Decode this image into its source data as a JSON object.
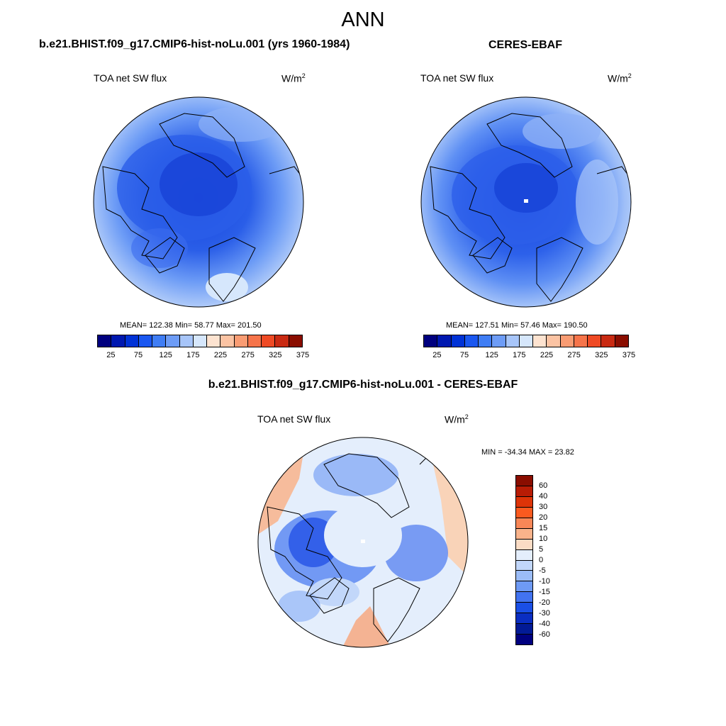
{
  "title": "ANN",
  "panels": [
    {
      "title": "b.e21.BHIST.f09_g17.CMIP6-hist-noLu.001 (yrs 1960-1984)",
      "variable": "TOA net SW flux",
      "units": "W/m",
      "units_sup": "2",
      "stats": "MEAN= 122.38  Min=  58.77  Max= 201.50"
    },
    {
      "title": "CERES-EBAF",
      "variable": "TOA net SW flux",
      "units": "W/m",
      "units_sup": "2",
      "stats": "MEAN= 127.51  Min=  57.46  Max= 190.50"
    },
    {
      "title": "b.e21.BHIST.f09_g17.CMIP6-hist-noLu.001 - CERES-EBAF",
      "variable": "TOA net SW flux",
      "units": "W/m",
      "units_sup": "2",
      "stats": "MIN = -34.34 MAX =  23.82"
    }
  ],
  "colorbar_abs": {
    "colors": [
      "#00007f",
      "#0018b0",
      "#0032d6",
      "#1a57f0",
      "#3f7df4",
      "#6d9cf6",
      "#a7c5f9",
      "#d6e7fc",
      "#fde3d0",
      "#fbc3a3",
      "#f99c73",
      "#f6744a",
      "#ef4a24",
      "#c92a12",
      "#8a0d00"
    ],
    "tick_labels": [
      "25",
      "75",
      "125",
      "175",
      "225",
      "275",
      "325",
      "375"
    ]
  },
  "colorbar_diff": {
    "colors": [
      "#8a0d00",
      "#b81c05",
      "#dd3408",
      "#fa5a1f",
      "#f88757",
      "#f9b38b",
      "#fbdcc5",
      "#e4eefc",
      "#c2d7fa",
      "#9bbcf7",
      "#6e9af4",
      "#4273f0",
      "#1a4fe6",
      "#0a2ec2",
      "#021a96",
      "#00007f"
    ],
    "tick_labels": [
      "60",
      "40",
      "30",
      "20",
      "15",
      "10",
      "5",
      "0",
      "-5",
      "-10",
      "-15",
      "-20",
      "-30",
      "-40",
      "-60"
    ]
  }
}
